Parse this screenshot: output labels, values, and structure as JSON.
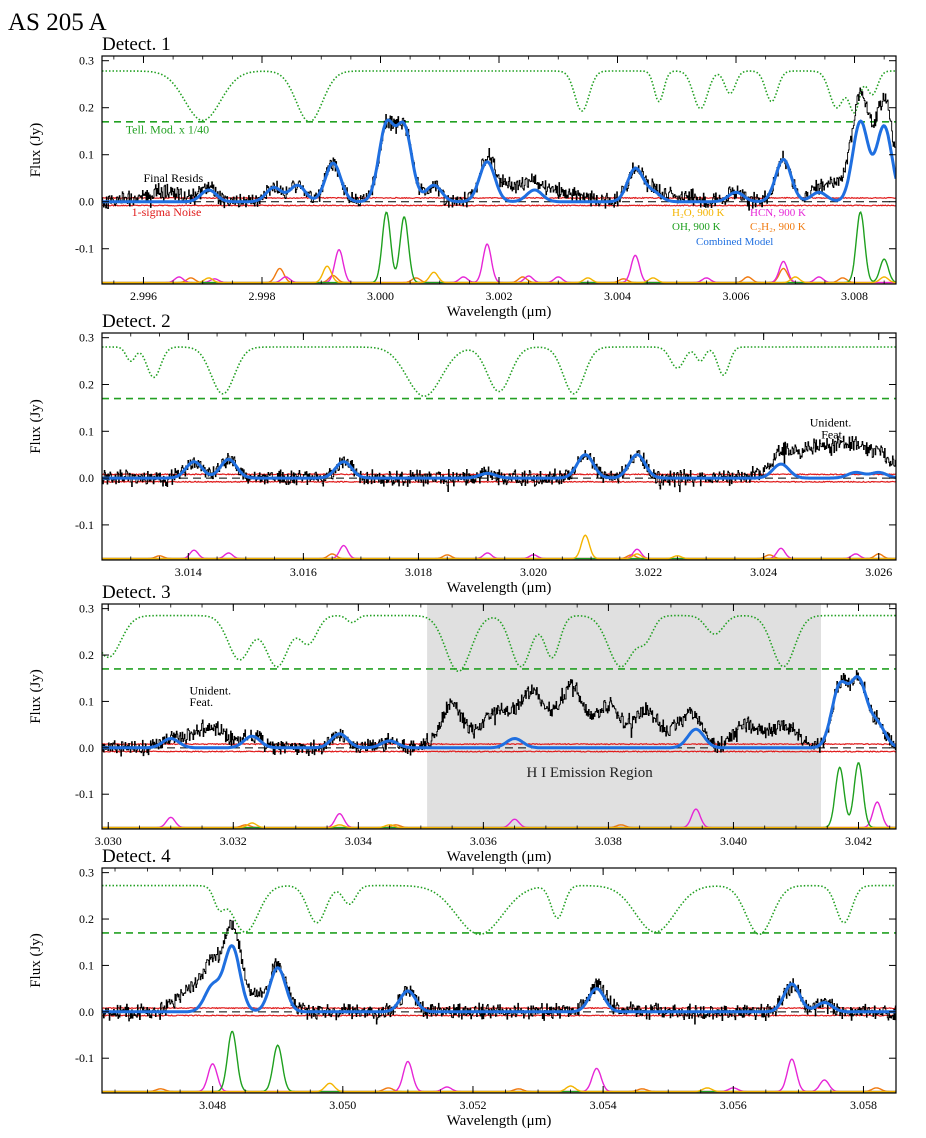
{
  "figure": {
    "title": "AS 205 A",
    "xlabel": "Wavelength (μm)",
    "ylabel": "Flux (Jy)"
  },
  "colors": {
    "telluric": "#22a022",
    "noise": "#e01a1a",
    "data": "#000000",
    "combined": "#1f6fe0",
    "h2o": "#f4b400",
    "oh": "#1fa01f",
    "hcn": "#e626d6",
    "c2h2": "#f07a10",
    "shade": "#e0e0e0"
  },
  "chart_data": [
    {
      "type": "line",
      "title": "Detect. 1",
      "xlim": [
        2.9953,
        3.0087
      ],
      "ylim": [
        -0.175,
        0.31
      ],
      "xticks": [
        2.996,
        2.998,
        3.0,
        3.002,
        3.004,
        3.006,
        3.008
      ],
      "xtick_labels": [
        "2.996",
        "2.998",
        "3.000",
        "3.002",
        "3.004",
        "3.006",
        "3.008"
      ],
      "yticks": [
        -0.1,
        0.0,
        0.1,
        0.2,
        0.3
      ],
      "ytick_labels": [
        "-0.1",
        "0.0",
        "0.1",
        "0.2",
        "0.3"
      ],
      "telluric_scaled": {
        "base": 0.278,
        "ref_level": 0.17,
        "absorptions": [
          [
            2.997,
            0.105,
            0.0003
          ],
          [
            2.9988,
            0.108,
            0.00022
          ],
          [
            3.0034,
            0.085,
            0.00012
          ],
          [
            3.0047,
            0.065,
            8e-05
          ],
          [
            3.0054,
            0.08,
            0.00012
          ],
          [
            3.0059,
            0.048,
            9e-05
          ],
          [
            3.0066,
            0.065,
            0.0001
          ],
          [
            3.0077,
            0.078,
            0.00012
          ],
          [
            3.008,
            0.085,
            9e-05
          ],
          [
            3.0083,
            0.05,
            9e-05
          ]
        ]
      },
      "model_lines": {
        "h2o": [
          [
            2.9971,
            0.01
          ],
          [
            2.9991,
            0.035
          ],
          [
            3.0009,
            0.022
          ],
          [
            3.0035,
            0.01
          ],
          [
            3.0046,
            0.01
          ],
          [
            3.007,
            0.012
          ],
          [
            3.0085,
            0.012
          ]
        ],
        "oh": [
          [
            3.0001,
            0.15
          ],
          [
            3.0004,
            0.14
          ],
          [
            3.0081,
            0.15
          ],
          [
            3.0085,
            0.05
          ]
        ],
        "hcn": [
          [
            2.9966,
            0.012
          ],
          [
            2.9972,
            0.008
          ],
          [
            2.9984,
            0.012
          ],
          [
            2.9993,
            0.07
          ],
          [
            3.0014,
            0.012
          ],
          [
            3.0018,
            0.082
          ],
          [
            3.0025,
            0.014
          ],
          [
            3.003,
            0.012
          ],
          [
            3.0043,
            0.058
          ],
          [
            3.0055,
            0.01
          ],
          [
            3.0068,
            0.045
          ],
          [
            3.0074,
            0.012
          ]
        ],
        "c2h2": [
          [
            2.9968,
            0.01
          ],
          [
            2.9983,
            0.03
          ],
          [
            2.9992,
            0.015
          ],
          [
            3.0006,
            0.01
          ],
          [
            3.0024,
            0.012
          ],
          [
            3.0041,
            0.008
          ],
          [
            3.0062,
            0.012
          ],
          [
            3.0068,
            0.03
          ],
          [
            3.0078,
            0.01
          ]
        ]
      },
      "combined_peaks": [
        [
          2.9971,
          0.025
        ],
        [
          2.9982,
          0.03
        ],
        [
          2.9986,
          0.035
        ],
        [
          2.9992,
          0.082
        ],
        [
          3.0001,
          0.16
        ],
        [
          3.0004,
          0.155
        ],
        [
          3.0009,
          0.035
        ],
        [
          3.0018,
          0.085
        ],
        [
          3.0026,
          0.025
        ],
        [
          3.0043,
          0.07
        ],
        [
          3.0046,
          0.02
        ],
        [
          3.006,
          0.02
        ],
        [
          3.0068,
          0.09
        ],
        [
          3.0074,
          0.02
        ],
        [
          3.0081,
          0.17
        ],
        [
          3.0085,
          0.16
        ]
      ],
      "combined_widths": 0.00013,
      "data_extra": [
        [
          2.9963,
          0.02,
          0.0004
        ],
        [
          3.0022,
          0.03,
          0.0003
        ],
        [
          3.003,
          0.02,
          0.0004
        ],
        [
          3.005,
          0.015,
          0.0003
        ],
        [
          3.0078,
          0.03,
          0.0003
        ],
        [
          3.0084,
          0.06,
          0.0004
        ]
      ],
      "noise_sigma": 0.008,
      "annotations": [
        {
          "text": "Tell. Mod. x 1/40",
          "x": 2.9957,
          "y": 0.145,
          "color_key": "telluric"
        },
        {
          "text": "Final Resids",
          "x": 2.996,
          "y": 0.042,
          "color_key": "data"
        },
        {
          "text": "1-sigma Noise",
          "x": 2.9958,
          "y": -0.03,
          "color_key": "noise"
        }
      ],
      "legend": [
        {
          "text": "H₂O, 900 K",
          "color_key": "h2o"
        },
        {
          "text": "HCN, 900 K",
          "color_key": "hcn"
        },
        {
          "text": "OH, 900 K",
          "color_key": "oh"
        },
        {
          "text": "C₂H₂, 900 K",
          "color_key": "c2h2"
        },
        {
          "text": "Combined Model",
          "color_key": "combined"
        }
      ]
    },
    {
      "type": "line",
      "title": "Detect. 2",
      "xlim": [
        3.0125,
        3.0263
      ],
      "ylim": [
        -0.175,
        0.31
      ],
      "xticks": [
        3.014,
        3.016,
        3.018,
        3.02,
        3.022,
        3.024,
        3.026
      ],
      "xtick_labels": [
        "3.014",
        "3.016",
        "3.018",
        "3.020",
        "3.022",
        "3.024",
        "3.026"
      ],
      "yticks": [
        -0.1,
        0.0,
        0.1,
        0.2,
        0.3
      ],
      "ytick_labels": [
        "-0.1",
        "0.0",
        "0.1",
        "0.2",
        "0.3"
      ],
      "telluric_scaled": {
        "base": 0.28,
        "ref_level": 0.17,
        "absorptions": [
          [
            3.013,
            0.03,
            8e-05
          ],
          [
            3.0134,
            0.065,
            0.00012
          ],
          [
            3.0146,
            0.1,
            0.0002
          ],
          [
            3.0181,
            0.105,
            0.0003
          ],
          [
            3.0194,
            0.095,
            0.0002
          ],
          [
            3.0207,
            0.1,
            0.00018
          ],
          [
            3.0225,
            0.045,
            0.00012
          ],
          [
            3.0229,
            0.03,
            8e-05
          ],
          [
            3.0233,
            0.06,
            0.0001
          ]
        ]
      },
      "model_lines": {
        "h2o": [
          [
            3.0209,
            0.05
          ],
          [
            3.0218,
            0.01
          ],
          [
            3.0225,
            0.006
          ]
        ],
        "oh": [],
        "hcn": [
          [
            3.0141,
            0.018
          ],
          [
            3.0147,
            0.012
          ],
          [
            3.0167,
            0.028
          ],
          [
            3.0192,
            0.012
          ],
          [
            3.02,
            0.008
          ],
          [
            3.0218,
            0.02
          ],
          [
            3.0243,
            0.022
          ],
          [
            3.0256,
            0.01
          ]
        ],
        "c2h2": [
          [
            3.0135,
            0.006
          ],
          [
            3.0165,
            0.01
          ],
          [
            3.0185,
            0.008
          ],
          [
            3.0217,
            0.008
          ],
          [
            3.0241,
            0.008
          ],
          [
            3.026,
            0.01
          ]
        ]
      },
      "combined_peaks": [
        [
          3.0141,
          0.035
        ],
        [
          3.0147,
          0.04
        ],
        [
          3.0167,
          0.035
        ],
        [
          3.0192,
          0.01
        ],
        [
          3.0209,
          0.05
        ],
        [
          3.0218,
          0.05
        ],
        [
          3.0243,
          0.03
        ],
        [
          3.0256,
          0.012
        ],
        [
          3.026,
          0.012
        ]
      ],
      "combined_widths": 0.00014,
      "data_extra": [
        [
          3.0255,
          0.05,
          0.0008
        ],
        [
          3.0249,
          0.03,
          0.0005
        ]
      ],
      "noise_sigma": 0.008,
      "annotations": [
        {
          "text": "Unident.",
          "x": 3.0248,
          "y": 0.11,
          "color_key": "data"
        },
        {
          "text": "Feat.",
          "x": 3.025,
          "y": 0.085,
          "color_key": "data"
        }
      ]
    },
    {
      "type": "line",
      "title": "Detect. 3",
      "xlim": [
        3.0299,
        3.0426
      ],
      "ylim": [
        -0.175,
        0.31
      ],
      "xticks": [
        3.03,
        3.032,
        3.034,
        3.036,
        3.038,
        3.04,
        3.042
      ],
      "xtick_labels": [
        "3.030",
        "3.032",
        "3.034",
        "3.036",
        "3.038",
        "3.040",
        "3.042"
      ],
      "yticks": [
        -0.1,
        0.0,
        0.1,
        0.2,
        0.3
      ],
      "ytick_labels": [
        "-0.1",
        "0.0",
        "0.1",
        "0.2",
        "0.3"
      ],
      "shaded_region": [
        3.0351,
        3.0414
      ],
      "shaded_label": "H I Emission Region",
      "telluric_scaled": {
        "base": 0.285,
        "ref_level": 0.17,
        "absorptions": [
          [
            3.03,
            0.09,
            0.0002
          ],
          [
            3.0321,
            0.095,
            0.00018
          ],
          [
            3.0327,
            0.11,
            0.00018
          ],
          [
            3.0332,
            0.06,
            0.00014
          ],
          [
            3.0339,
            0.015,
            8e-05
          ],
          [
            3.0356,
            0.12,
            0.0002
          ],
          [
            3.0366,
            0.11,
            0.00016
          ],
          [
            3.0371,
            0.09,
            0.00012
          ],
          [
            3.0382,
            0.11,
            0.0002
          ],
          [
            3.0386,
            0.045,
            0.00012
          ],
          [
            3.0397,
            0.04,
            0.00014
          ],
          [
            3.0408,
            0.11,
            0.00018
          ]
        ]
      },
      "model_lines": {
        "h2o": [
          [
            3.0323,
            0.01
          ],
          [
            3.0337,
            0.006
          ],
          [
            3.0345,
            0.006
          ]
        ],
        "oh": [
          [
            3.0417,
            0.13
          ],
          [
            3.042,
            0.14
          ]
        ],
        "hcn": [
          [
            3.031,
            0.022
          ],
          [
            3.0337,
            0.03
          ],
          [
            3.0365,
            0.018
          ],
          [
            3.0394,
            0.04
          ],
          [
            3.0423,
            0.055
          ]
        ],
        "c2h2": [
          [
            3.0322,
            0.006
          ],
          [
            3.0346,
            0.006
          ],
          [
            3.0382,
            0.006
          ]
        ]
      },
      "combined_peaks": [
        [
          3.031,
          0.02
        ],
        [
          3.0323,
          0.025
        ],
        [
          3.0337,
          0.03
        ],
        [
          3.0345,
          0.015
        ],
        [
          3.0365,
          0.02
        ],
        [
          3.0394,
          0.04
        ],
        [
          3.0417,
          0.13
        ],
        [
          3.042,
          0.14
        ],
        [
          3.0423,
          0.05
        ]
      ],
      "combined_widths": 0.00013,
      "data_extra": [
        [
          3.0316,
          0.045,
          0.0003
        ],
        [
          3.0355,
          0.09,
          0.0002
        ],
        [
          3.0362,
          0.08,
          0.0002
        ],
        [
          3.0368,
          0.12,
          0.0002
        ],
        [
          3.0374,
          0.13,
          0.0002
        ],
        [
          3.038,
          0.09,
          0.0002
        ],
        [
          3.0386,
          0.08,
          0.0002
        ],
        [
          3.0392,
          0.05,
          0.0002
        ],
        [
          3.0402,
          0.05,
          0.0002
        ],
        [
          3.0408,
          0.05,
          0.0002
        ]
      ],
      "noise_sigma": 0.008,
      "annotations": [
        {
          "text": "Unident.",
          "x": 3.0313,
          "y": 0.115,
          "color_key": "data"
        },
        {
          "text": "Feat.",
          "x": 3.0313,
          "y": 0.09,
          "color_key": "data"
        }
      ]
    },
    {
      "type": "line",
      "title": "Detect. 4",
      "xlim": [
        3.0463,
        3.0585
      ],
      "ylim": [
        -0.175,
        0.31
      ],
      "xticks": [
        3.048,
        3.05,
        3.052,
        3.054,
        3.056,
        3.058
      ],
      "xtick_labels": [
        "3.048",
        "3.050",
        "3.052",
        "3.054",
        "3.056",
        "3.058"
      ],
      "yticks": [
        -0.1,
        0.0,
        0.1,
        0.2,
        0.3
      ],
      "ytick_labels": [
        "-0.1",
        "0.0",
        "0.1",
        "0.2",
        "0.3"
      ],
      "telluric_scaled": {
        "base": 0.272,
        "ref_level": 0.17,
        "absorptions": [
          [
            3.0481,
            0.04,
            8e-05
          ],
          [
            3.0485,
            0.1,
            0.0002
          ],
          [
            3.0496,
            0.08,
            0.00014
          ],
          [
            3.0501,
            0.04,
            0.0001
          ],
          [
            3.0521,
            0.105,
            0.00035
          ],
          [
            3.0533,
            0.07,
            0.0001
          ],
          [
            3.0548,
            0.1,
            0.0003
          ],
          [
            3.0564,
            0.105,
            0.0002
          ],
          [
            3.0577,
            0.08,
            0.00012
          ]
        ]
      },
      "model_lines": {
        "h2o": [
          [
            3.0498,
            0.018
          ],
          [
            3.0535,
            0.012
          ],
          [
            3.0556,
            0.008
          ]
        ],
        "oh": [
          [
            3.0483,
            0.13
          ],
          [
            3.049,
            0.1
          ]
        ],
        "hcn": [
          [
            3.048,
            0.06
          ],
          [
            3.051,
            0.065
          ],
          [
            3.0516,
            0.01
          ],
          [
            3.0539,
            0.05
          ],
          [
            3.056,
            0.008
          ],
          [
            3.0569,
            0.07
          ],
          [
            3.0574,
            0.025
          ]
        ],
        "c2h2": [
          [
            3.0472,
            0.006
          ],
          [
            3.0507,
            0.008
          ],
          [
            3.0527,
            0.006
          ],
          [
            3.0546,
            0.006
          ],
          [
            3.0582,
            0.008
          ]
        ]
      },
      "combined_peaks": [
        [
          3.048,
          0.055
        ],
        [
          3.0483,
          0.14
        ],
        [
          3.049,
          0.095
        ],
        [
          3.051,
          0.045
        ],
        [
          3.0539,
          0.05
        ],
        [
          3.0569,
          0.06
        ],
        [
          3.0574,
          0.02
        ]
      ],
      "combined_widths": 0.00012,
      "data_extra": [
        [
          3.0478,
          0.06,
          0.0003
        ],
        [
          3.0485,
          0.04,
          0.0003
        ],
        [
          3.054,
          0.01,
          0.0003
        ]
      ],
      "noise_sigma": 0.008,
      "annotations": []
    }
  ]
}
